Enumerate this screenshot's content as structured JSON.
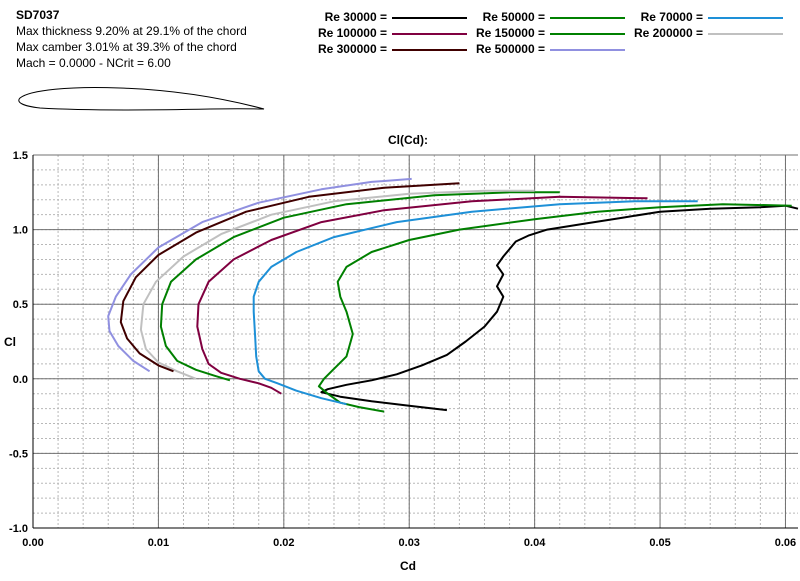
{
  "info": {
    "airfoil_name": "SD7037",
    "max_thickness": "Max thickness 9.20% at 29.1% of the chord",
    "max_camber": "Max camber 3.01% at 39.3% of the chord",
    "mach_ncrit": "Mach = 0.0000 - NCrit = 6.00"
  },
  "chart_data": {
    "type": "line",
    "title": "Cl(Cd):",
    "xlabel": "Cd",
    "ylabel": "Cl",
    "xlim": [
      0.0,
      0.061
    ],
    "ylim": [
      -1.0,
      1.5
    ],
    "x_ticks": [
      "0.00",
      "0.01",
      "0.02",
      "0.03",
      "0.04",
      "0.05",
      "0.06"
    ],
    "y_ticks": [
      "1.5",
      "1.0",
      "0.5",
      "0.0",
      "-0.5",
      "-1.0"
    ],
    "x_tick_values": [
      0.0,
      0.01,
      0.02,
      0.03,
      0.04,
      0.05,
      0.06
    ],
    "y_tick_values": [
      1.5,
      1.0,
      0.5,
      0.0,
      -0.5,
      -1.0
    ],
    "grid": true,
    "legend_position": "top",
    "series": [
      {
        "name": "Re 30000 =",
        "color": "#000000",
        "points": [
          [
            0.033,
            -0.21
          ],
          [
            0.03,
            -0.18
          ],
          [
            0.027,
            -0.15
          ],
          [
            0.0245,
            -0.12
          ],
          [
            0.023,
            -0.09
          ],
          [
            0.0235,
            -0.07
          ],
          [
            0.025,
            -0.04
          ],
          [
            0.027,
            -0.01
          ],
          [
            0.029,
            0.03
          ],
          [
            0.031,
            0.09
          ],
          [
            0.033,
            0.16
          ],
          [
            0.0345,
            0.25
          ],
          [
            0.036,
            0.35
          ],
          [
            0.037,
            0.45
          ],
          [
            0.0375,
            0.55
          ],
          [
            0.037,
            0.62
          ],
          [
            0.0375,
            0.7
          ],
          [
            0.037,
            0.76
          ],
          [
            0.0375,
            0.82
          ],
          [
            0.038,
            0.87
          ],
          [
            0.0385,
            0.92
          ],
          [
            0.0395,
            0.96
          ],
          [
            0.041,
            1.0
          ],
          [
            0.044,
            1.04
          ],
          [
            0.047,
            1.08
          ],
          [
            0.05,
            1.12
          ],
          [
            0.054,
            1.14
          ],
          [
            0.058,
            1.15
          ],
          [
            0.06,
            1.16
          ],
          [
            0.061,
            1.14
          ]
        ]
      },
      {
        "name": "Re 50000 =",
        "color": "#008000",
        "points": [
          [
            0.028,
            -0.22
          ],
          [
            0.026,
            -0.19
          ],
          [
            0.0245,
            -0.16
          ],
          [
            0.0235,
            -0.1
          ],
          [
            0.0228,
            -0.05
          ],
          [
            0.0232,
            0.0
          ],
          [
            0.0238,
            0.05
          ],
          [
            0.025,
            0.15
          ],
          [
            0.0255,
            0.3
          ],
          [
            0.025,
            0.45
          ],
          [
            0.0245,
            0.55
          ],
          [
            0.0243,
            0.65
          ],
          [
            0.025,
            0.75
          ],
          [
            0.027,
            0.85
          ],
          [
            0.03,
            0.93
          ],
          [
            0.034,
            1.0
          ],
          [
            0.04,
            1.07
          ],
          [
            0.045,
            1.12
          ],
          [
            0.05,
            1.15
          ],
          [
            0.055,
            1.17
          ],
          [
            0.0605,
            1.16
          ]
        ]
      },
      {
        "name": "Re 70000 =",
        "color": "#1e90d7",
        "points": [
          [
            0.025,
            -0.17
          ],
          [
            0.023,
            -0.13
          ],
          [
            0.021,
            -0.08
          ],
          [
            0.0195,
            -0.03
          ],
          [
            0.0185,
            0.0
          ],
          [
            0.018,
            0.05
          ],
          [
            0.0178,
            0.15
          ],
          [
            0.0177,
            0.3
          ],
          [
            0.0176,
            0.45
          ],
          [
            0.0176,
            0.55
          ],
          [
            0.018,
            0.65
          ],
          [
            0.019,
            0.75
          ],
          [
            0.021,
            0.85
          ],
          [
            0.024,
            0.95
          ],
          [
            0.029,
            1.05
          ],
          [
            0.035,
            1.12
          ],
          [
            0.042,
            1.17
          ],
          [
            0.048,
            1.19
          ],
          [
            0.053,
            1.19
          ]
        ]
      },
      {
        "name": "Re 100000 =",
        "color": "#800040",
        "points": [
          [
            0.0198,
            -0.1
          ],
          [
            0.019,
            -0.06
          ],
          [
            0.018,
            -0.03
          ],
          [
            0.0165,
            0.0
          ],
          [
            0.015,
            0.04
          ],
          [
            0.014,
            0.1
          ],
          [
            0.0135,
            0.2
          ],
          [
            0.0131,
            0.35
          ],
          [
            0.0132,
            0.5
          ],
          [
            0.014,
            0.65
          ],
          [
            0.016,
            0.8
          ],
          [
            0.019,
            0.93
          ],
          [
            0.023,
            1.05
          ],
          [
            0.028,
            1.13
          ],
          [
            0.035,
            1.19
          ],
          [
            0.042,
            1.22
          ],
          [
            0.049,
            1.21
          ]
        ]
      },
      {
        "name": "Re 150000 =",
        "color": "#008000",
        "points": [
          [
            0.0157,
            -0.01
          ],
          [
            0.0145,
            0.02
          ],
          [
            0.013,
            0.06
          ],
          [
            0.0115,
            0.12
          ],
          [
            0.0106,
            0.22
          ],
          [
            0.0102,
            0.35
          ],
          [
            0.0103,
            0.5
          ],
          [
            0.011,
            0.65
          ],
          [
            0.013,
            0.8
          ],
          [
            0.016,
            0.95
          ],
          [
            0.02,
            1.08
          ],
          [
            0.025,
            1.17
          ],
          [
            0.032,
            1.23
          ],
          [
            0.038,
            1.25
          ],
          [
            0.042,
            1.25
          ]
        ]
      },
      {
        "name": "Re 200000 =",
        "color": "#c0c0c0",
        "points": [
          [
            0.013,
            0.0
          ],
          [
            0.0115,
            0.05
          ],
          [
            0.01,
            0.11
          ],
          [
            0.009,
            0.2
          ],
          [
            0.0086,
            0.33
          ],
          [
            0.0088,
            0.5
          ],
          [
            0.0098,
            0.65
          ],
          [
            0.012,
            0.82
          ],
          [
            0.015,
            0.97
          ],
          [
            0.019,
            1.1
          ],
          [
            0.024,
            1.19
          ],
          [
            0.03,
            1.24
          ],
          [
            0.036,
            1.26
          ],
          [
            0.04,
            1.26
          ]
        ]
      },
      {
        "name": "Re 300000 =",
        "color": "#400000",
        "points": [
          [
            0.0112,
            0.05
          ],
          [
            0.01,
            0.09
          ],
          [
            0.0085,
            0.17
          ],
          [
            0.0075,
            0.27
          ],
          [
            0.007,
            0.38
          ],
          [
            0.0072,
            0.52
          ],
          [
            0.0082,
            0.68
          ],
          [
            0.01,
            0.83
          ],
          [
            0.013,
            0.98
          ],
          [
            0.017,
            1.12
          ],
          [
            0.022,
            1.22
          ],
          [
            0.028,
            1.28
          ],
          [
            0.034,
            1.31
          ]
        ]
      },
      {
        "name": "Re 500000 =",
        "color": "#9090e0",
        "points": [
          [
            0.0093,
            0.05
          ],
          [
            0.008,
            0.12
          ],
          [
            0.0068,
            0.22
          ],
          [
            0.0061,
            0.32
          ],
          [
            0.006,
            0.42
          ],
          [
            0.0066,
            0.55
          ],
          [
            0.0078,
            0.7
          ],
          [
            0.01,
            0.88
          ],
          [
            0.0135,
            1.05
          ],
          [
            0.018,
            1.18
          ],
          [
            0.023,
            1.27
          ],
          [
            0.027,
            1.32
          ],
          [
            0.0302,
            1.34
          ]
        ]
      }
    ]
  }
}
